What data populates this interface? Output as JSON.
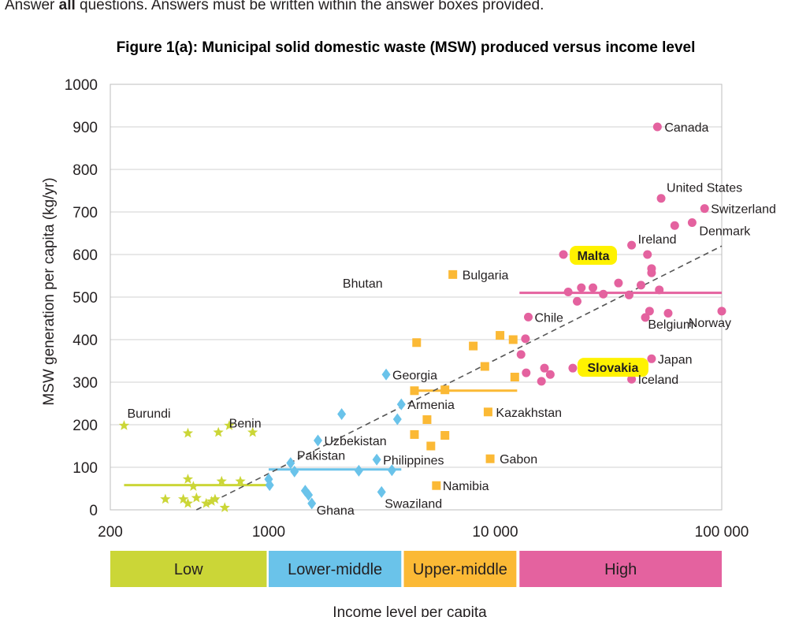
{
  "instruction": {
    "prefix": "Answer ",
    "bold": "all",
    "suffix": " questions. Answers must be written within the answer boxes provided."
  },
  "chart_data": {
    "type": "scatter",
    "title": "Figure 1(a): Municipal solid domestic waste (MSW) produced versus income level",
    "xlabel": "Income level per capita",
    "ylabel": "MSW generation per capita (kg/yr)",
    "xscale": "log",
    "xlim": [
      200,
      100000
    ],
    "ylim": [
      0,
      1000
    ],
    "yticks": [
      0,
      100,
      200,
      300,
      400,
      500,
      600,
      700,
      800,
      900,
      1000
    ],
    "xticks": [
      {
        "value": 200,
        "label": "200"
      },
      {
        "value": 1000,
        "label": "1000"
      },
      {
        "value": 10000,
        "label": "10 000"
      },
      {
        "value": 100000,
        "label": "100 000"
      }
    ],
    "grid": true,
    "income_bands": [
      {
        "label": "Low",
        "from": 200,
        "to": 980,
        "color": "#cbd637"
      },
      {
        "label": "Lower-middle",
        "from": 1000,
        "to": 3850,
        "color": "#6ac3ea"
      },
      {
        "label": "Upper-middle",
        "from": 3950,
        "to": 12400,
        "color": "#fbb935"
      },
      {
        "label": "High",
        "from": 12800,
        "to": 100000,
        "color": "#e4629f"
      }
    ],
    "trendline": {
      "from": [
        480,
        0
      ],
      "to": [
        100000,
        620
      ],
      "style": "dashed",
      "color": "#555555"
    },
    "average_lines": [
      {
        "group": "Low",
        "from": 230,
        "to": 980,
        "y": 58,
        "color": "#cbd637"
      },
      {
        "group": "Lower-middle",
        "from": 1000,
        "to": 3850,
        "y": 95,
        "color": "#6ac3ea"
      },
      {
        "group": "Upper-middle",
        "from": 4400,
        "to": 12500,
        "y": 280,
        "color": "#fbb935"
      },
      {
        "group": "High",
        "from": 12800,
        "to": 100000,
        "y": 510,
        "color": "#e4629f"
      }
    ],
    "series": [
      {
        "name": "Low",
        "marker": "star",
        "color": "#cbd637",
        "points": [
          {
            "x": 230,
            "y": 198,
            "label": "Burundi"
          },
          {
            "x": 440,
            "y": 180
          },
          {
            "x": 600,
            "y": 182
          },
          {
            "x": 670,
            "y": 198
          },
          {
            "x": 850,
            "y": 182,
            "label": "Benin"
          },
          {
            "x": 350,
            "y": 25
          },
          {
            "x": 420,
            "y": 25
          },
          {
            "x": 440,
            "y": 15
          },
          {
            "x": 480,
            "y": 28
          },
          {
            "x": 440,
            "y": 72
          },
          {
            "x": 465,
            "y": 55
          },
          {
            "x": 530,
            "y": 15
          },
          {
            "x": 560,
            "y": 20
          },
          {
            "x": 580,
            "y": 25
          },
          {
            "x": 620,
            "y": 67
          },
          {
            "x": 640,
            "y": 5
          },
          {
            "x": 750,
            "y": 67
          }
        ]
      },
      {
        "name": "Lower-middle",
        "marker": "diamond",
        "color": "#6ac3ea",
        "points": [
          {
            "x": 1000,
            "y": 72
          },
          {
            "x": 1010,
            "y": 58
          },
          {
            "x": 1250,
            "y": 110,
            "label": "Pakistan"
          },
          {
            "x": 1300,
            "y": 90
          },
          {
            "x": 1450,
            "y": 45
          },
          {
            "x": 1500,
            "y": 35
          },
          {
            "x": 1550,
            "y": 15,
            "label": "Ghana"
          },
          {
            "x": 1650,
            "y": 163,
            "label": "Uzbekistan"
          },
          {
            "x": 2100,
            "y": 225
          },
          {
            "x": 2500,
            "y": 92
          },
          {
            "x": 3000,
            "y": 118,
            "label": "Philippines"
          },
          {
            "x": 3150,
            "y": 42,
            "label": "Swaziland"
          },
          {
            "x": 3300,
            "y": 318,
            "label": "Georgia"
          },
          {
            "x": 3500,
            "y": 93
          },
          {
            "x": 3700,
            "y": 213
          },
          {
            "x": 3850,
            "y": 248,
            "label": "Armenia"
          }
        ]
      },
      {
        "name": "Upper-middle",
        "marker": "square",
        "color": "#fbb935",
        "points": [
          {
            "x": 4500,
            "y": 393
          },
          {
            "x": 4400,
            "y": 280
          },
          {
            "x": 4400,
            "y": 177
          },
          {
            "x": 5000,
            "y": 212
          },
          {
            "x": 5200,
            "y": 150
          },
          {
            "x": 5500,
            "y": 57,
            "label": "Namibia"
          },
          {
            "x": 6000,
            "y": 282
          },
          {
            "x": 6000,
            "y": 175
          },
          {
            "x": 6500,
            "y": 553,
            "label": "Bulgaria"
          },
          {
            "x": 8000,
            "y": 385
          },
          {
            "x": 9000,
            "y": 337
          },
          {
            "x": 9300,
            "y": 230,
            "label": "Kazakhstan"
          },
          {
            "x": 9500,
            "y": 120,
            "label": "Gabon"
          },
          {
            "x": 10500,
            "y": 410
          },
          {
            "x": 12000,
            "y": 400
          },
          {
            "x": 12200,
            "y": 312
          }
        ]
      },
      {
        "name": "High",
        "marker": "circle",
        "color": "#e4629f",
        "points": [
          {
            "x": 13000,
            "y": 365
          },
          {
            "x": 13700,
            "y": 322
          },
          {
            "x": 13600,
            "y": 402
          },
          {
            "x": 14000,
            "y": 453,
            "label": "Chile"
          },
          {
            "x": 16000,
            "y": 302
          },
          {
            "x": 16500,
            "y": 333
          },
          {
            "x": 17500,
            "y": 318
          },
          {
            "x": 20000,
            "y": 600,
            "label": "Malta",
            "highlight": true
          },
          {
            "x": 21000,
            "y": 512
          },
          {
            "x": 22000,
            "y": 333,
            "label": "Slovakia",
            "highlight": true
          },
          {
            "x": 23000,
            "y": 490
          },
          {
            "x": 24000,
            "y": 522
          },
          {
            "x": 27000,
            "y": 522
          },
          {
            "x": 30000,
            "y": 507
          },
          {
            "x": 35000,
            "y": 533
          },
          {
            "x": 39000,
            "y": 505
          },
          {
            "x": 40000,
            "y": 307,
            "label": "Iceland"
          },
          {
            "x": 40000,
            "y": 622,
            "label": "Ireland"
          },
          {
            "x": 44000,
            "y": 528
          },
          {
            "x": 46000,
            "y": 452
          },
          {
            "x": 47000,
            "y": 600
          },
          {
            "x": 48000,
            "y": 467,
            "label": "Belgium"
          },
          {
            "x": 49000,
            "y": 557
          },
          {
            "x": 49000,
            "y": 567
          },
          {
            "x": 49000,
            "y": 355,
            "label": "Japan"
          },
          {
            "x": 52000,
            "y": 900,
            "label": "Canada"
          },
          {
            "x": 53000,
            "y": 517
          },
          {
            "x": 54000,
            "y": 732,
            "label": "United States"
          },
          {
            "x": 58000,
            "y": 462
          },
          {
            "x": 62000,
            "y": 668
          },
          {
            "x": 74000,
            "y": 675,
            "label": "Denmark"
          },
          {
            "x": 84000,
            "y": 708,
            "label": "Switzerland"
          },
          {
            "x": 100000,
            "y": 467,
            "label": "Norway"
          }
        ]
      }
    ],
    "free_labels": [
      {
        "text": "Bhutan",
        "x": 2600,
        "y": 522
      }
    ]
  }
}
